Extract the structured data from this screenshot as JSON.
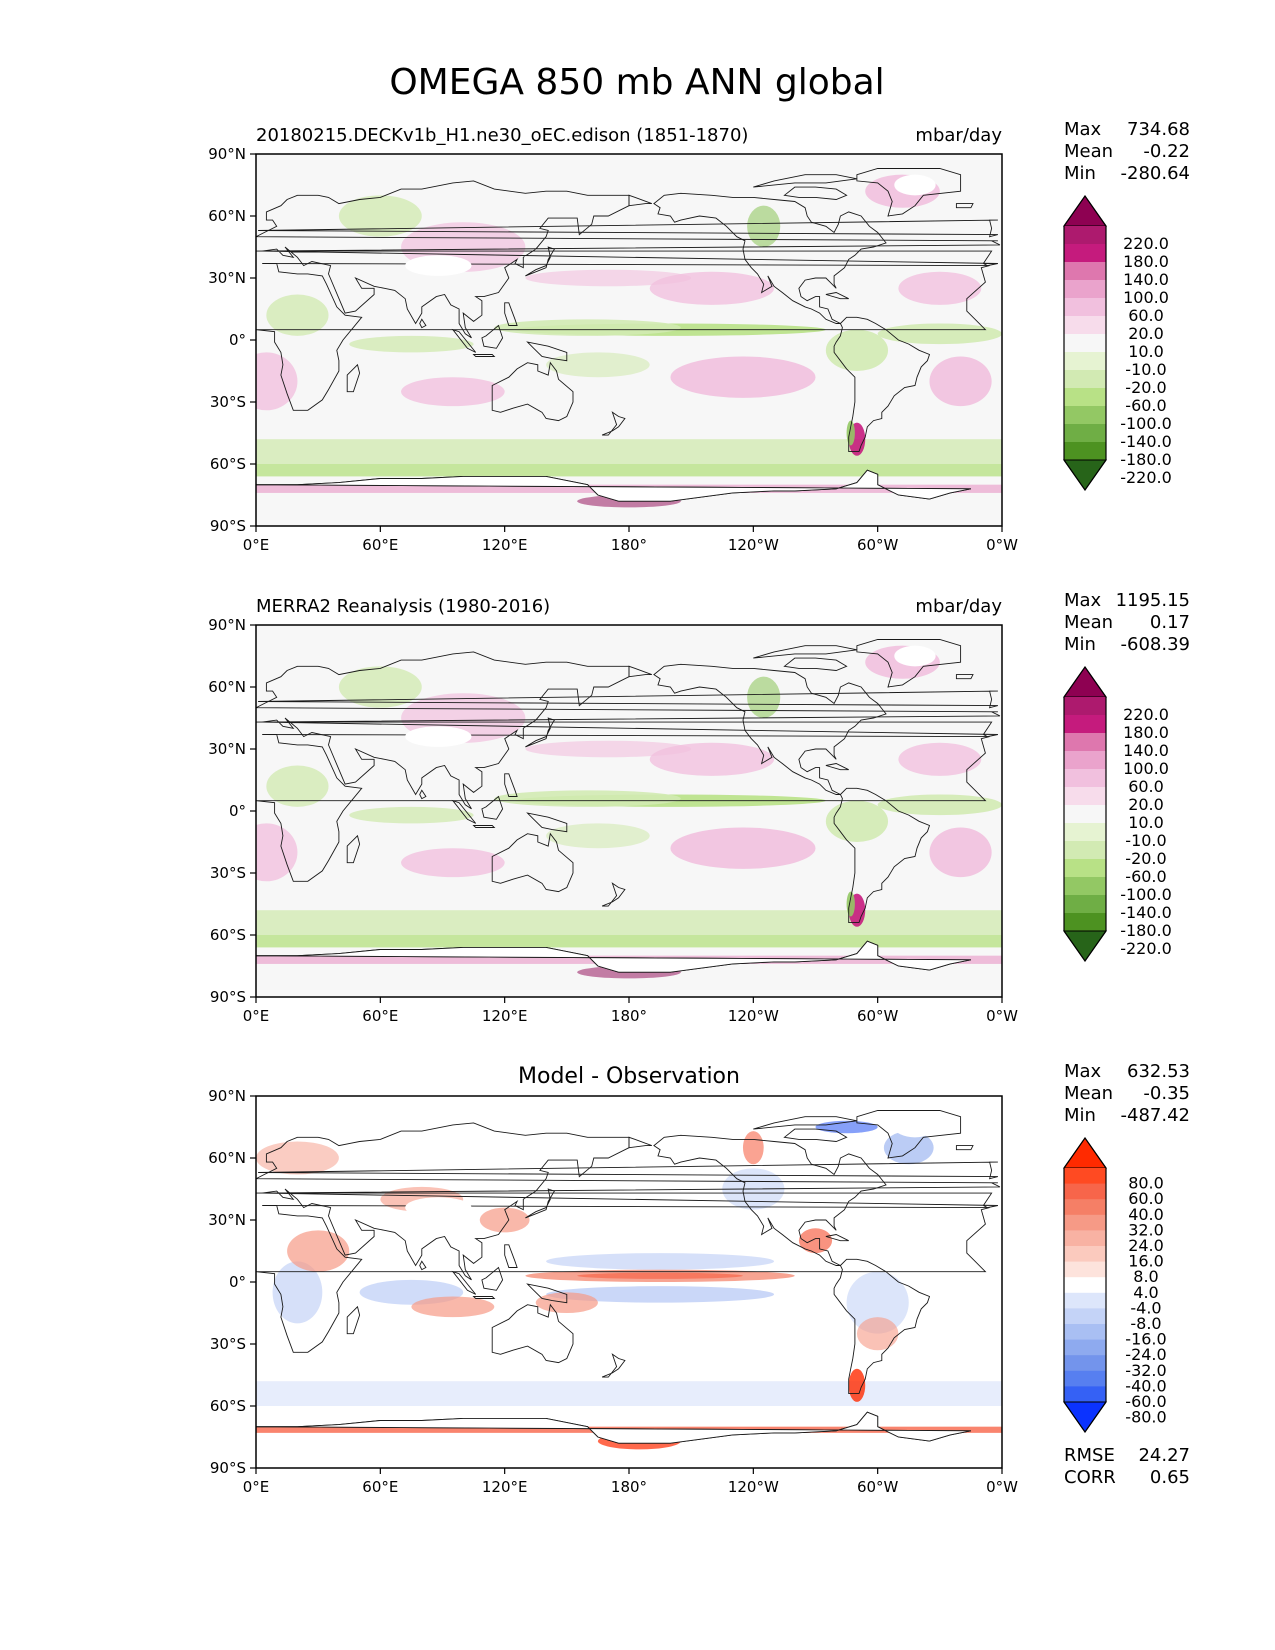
{
  "title": "OMEGA 850 mb ANN global",
  "x_ticks": [
    "0°E",
    "60°E",
    "120°E",
    "180°",
    "120°W",
    "60°W",
    "0°W"
  ],
  "y_ticks": [
    "90°N",
    "60°N",
    "30°N",
    "0°",
    "30°S",
    "60°S",
    "90°S"
  ],
  "panels": [
    {
      "id": "test",
      "title_left": "20180215.DECKv1b_H1.ne30_oEC.edison (1851-1870)",
      "title_center": "",
      "units": "mbar/day",
      "stats": [
        {
          "label": "Max",
          "value": "734.68"
        },
        {
          "label": "Mean",
          "value": "-0.22"
        },
        {
          "label": "Min",
          "value": "-280.64"
        }
      ],
      "colorbar_labels": [
        "220.0",
        "180.0",
        "140.0",
        "100.0",
        "60.0",
        "20.0",
        "10.0",
        "-10.0",
        "-20.0",
        "-60.0",
        "-100.0",
        "-140.0",
        "-180.0",
        "-220.0"
      ],
      "colorbar_colors": [
        "#8e0152",
        "#ad1a6e",
        "#c51b7d",
        "#de77ae",
        "#eaa3cc",
        "#f1c0de",
        "#f7dceb",
        "#f7f7f7",
        "#e6f3d2",
        "#d2eab3",
        "#b8e186",
        "#93c864",
        "#6fae45",
        "#4d9221",
        "#276419"
      ],
      "extra": []
    },
    {
      "id": "reference",
      "title_left": "MERRA2 Reanalysis (1980-2016)",
      "title_center": "",
      "units": "mbar/day",
      "stats": [
        {
          "label": "Max",
          "value": "1195.15"
        },
        {
          "label": "Mean",
          "value": "0.17"
        },
        {
          "label": "Min",
          "value": "-608.39"
        }
      ],
      "colorbar_labels": [
        "220.0",
        "180.0",
        "140.0",
        "100.0",
        "60.0",
        "20.0",
        "10.0",
        "-10.0",
        "-20.0",
        "-60.0",
        "-100.0",
        "-140.0",
        "-180.0",
        "-220.0"
      ],
      "colorbar_colors": [
        "#8e0152",
        "#ad1a6e",
        "#c51b7d",
        "#de77ae",
        "#eaa3cc",
        "#f1c0de",
        "#f7dceb",
        "#f7f7f7",
        "#e6f3d2",
        "#d2eab3",
        "#b8e186",
        "#93c864",
        "#6fae45",
        "#4d9221",
        "#276419"
      ],
      "extra": []
    },
    {
      "id": "diff",
      "title_left": "",
      "title_center": "Model - Observation",
      "units": "",
      "stats": [
        {
          "label": "Max",
          "value": "632.53"
        },
        {
          "label": "Mean",
          "value": "-0.35"
        },
        {
          "label": "Min",
          "value": "-487.42"
        }
      ],
      "colorbar_labels": [
        "80.0",
        "60.0",
        "40.0",
        "32.0",
        "24.0",
        "16.0",
        "8.0",
        "4.0",
        "-4.0",
        "-8.0",
        "-16.0",
        "-24.0",
        "-32.0",
        "-40.0",
        "-60.0",
        "-80.0"
      ],
      "colorbar_colors": [
        "#ff2a00",
        "#ff4a22",
        "#f7654a",
        "#f57f66",
        "#f69a86",
        "#f8b2a3",
        "#fbcabe",
        "#fde3dc",
        "#ffffff",
        "#dde6fb",
        "#c4d3f7",
        "#a9bff3",
        "#8eaaef",
        "#7394ec",
        "#577ff0",
        "#3561f5",
        "#0b33ff"
      ],
      "extra": [
        {
          "label": "RMSE",
          "value": "24.27"
        },
        {
          "label": "CORR",
          "value": "0.65"
        }
      ]
    }
  ]
}
